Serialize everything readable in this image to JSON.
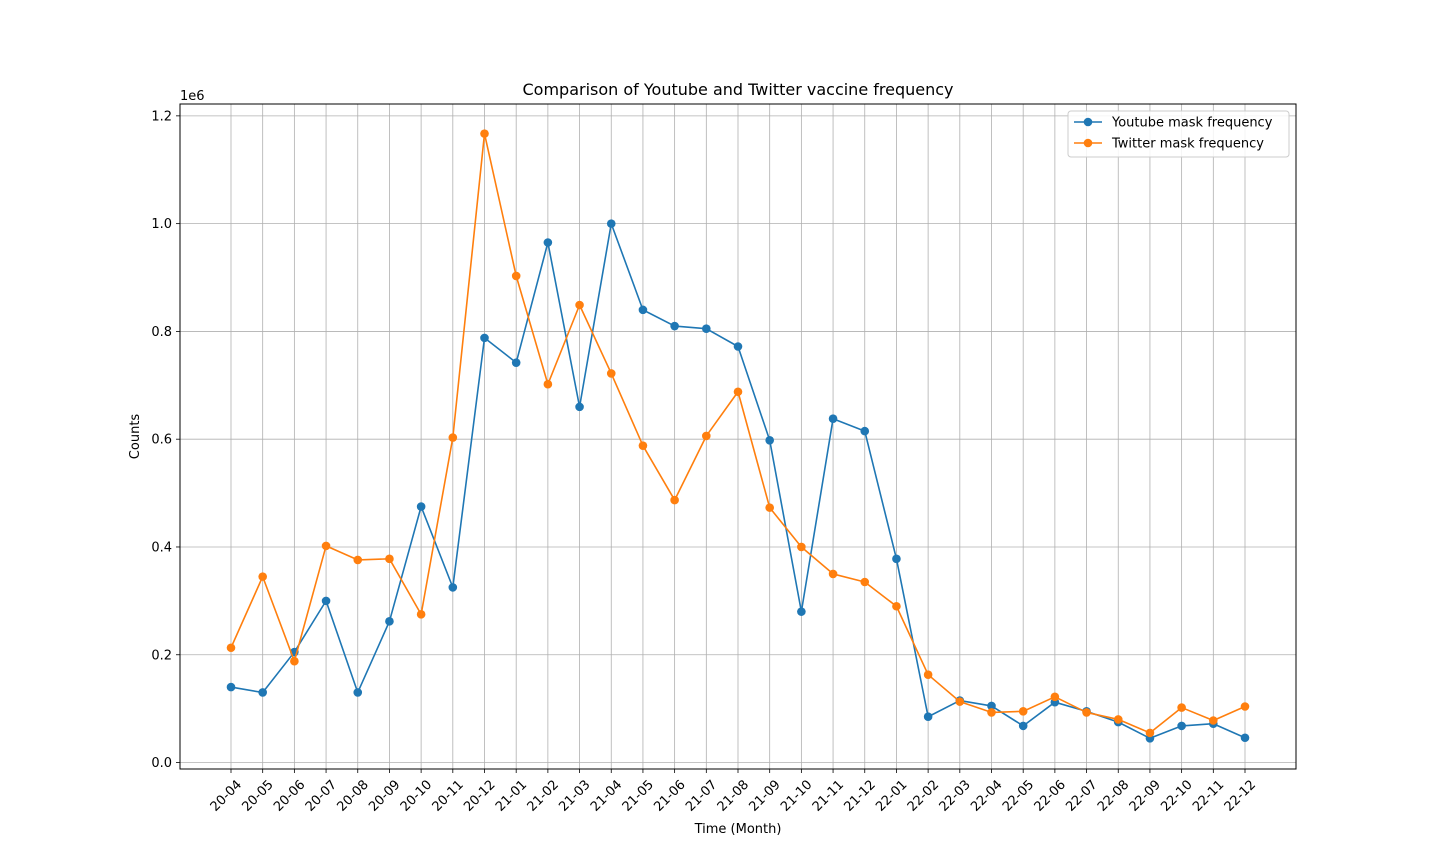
{
  "chart_data": {
    "type": "line",
    "title": "Comparison of Youtube and Twitter vaccine frequency",
    "xlabel": "Time (Month)",
    "ylabel": "Counts",
    "y_offset_label": "1e6",
    "categories": [
      "20-04",
      "20-05",
      "20-06",
      "20-07",
      "20-08",
      "20-09",
      "20-10",
      "20-11",
      "20-12",
      "21-01",
      "21-02",
      "21-03",
      "21-04",
      "21-05",
      "21-06",
      "21-07",
      "21-08",
      "21-09",
      "21-10",
      "21-11",
      "21-12",
      "22-01",
      "22-02",
      "22-03",
      "22-04",
      "22-05",
      "22-06",
      "22-07",
      "22-08",
      "22-09",
      "22-10",
      "22-11",
      "22-12"
    ],
    "yticks": [
      "0.0",
      "0.2",
      "0.4",
      "0.6",
      "0.8",
      "1.0",
      "1.2"
    ],
    "ytick_values": [
      0,
      200000,
      400000,
      600000,
      800000,
      1000000,
      1200000
    ],
    "ylim": [
      -12000,
      1222000
    ],
    "grid": true,
    "legend_position": "upper right",
    "series": [
      {
        "name": "Youtube mask frequency",
        "color": "#1f77b4",
        "values": [
          140000,
          130000,
          205000,
          300000,
          130000,
          262000,
          475000,
          325000,
          788000,
          742000,
          965000,
          660000,
          1000000,
          840000,
          810000,
          805000,
          772000,
          598000,
          280000,
          638000,
          615000,
          378000,
          85000,
          115000,
          105000,
          68000,
          112000,
          95000,
          75000,
          45000,
          68000,
          72000,
          46000
        ]
      },
      {
        "name": "Twitter mask frequency",
        "color": "#ff7f0e",
        "values": [
          213000,
          345000,
          188000,
          402000,
          376000,
          378000,
          275000,
          603000,
          1167000,
          903000,
          702000,
          849000,
          722000,
          588000,
          487000,
          606000,
          688000,
          473000,
          400000,
          350000,
          335000,
          290000,
          163000,
          113000,
          93000,
          95000,
          122000,
          93000,
          80000,
          55000,
          102000,
          78000,
          104000
        ]
      }
    ]
  }
}
